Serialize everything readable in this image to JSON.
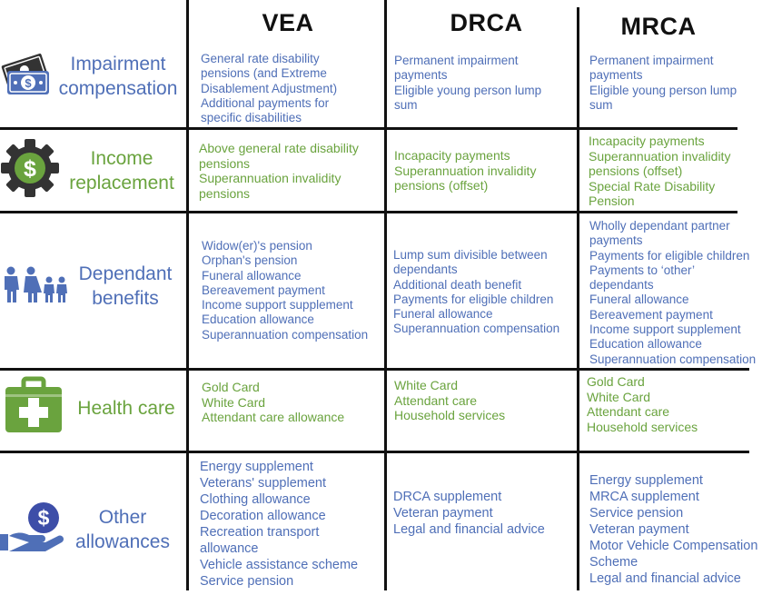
{
  "headers": {
    "vea": "VEA",
    "drca": "DRCA",
    "mrca": "MRCA"
  },
  "colors": {
    "blue": "#4f6fb7",
    "green": "#6aa33e",
    "grid": "#111111",
    "icon_dark": "#333333"
  },
  "rows": {
    "impairment": {
      "category": [
        "Impairment",
        "compensation"
      ],
      "icon": "money-icon",
      "vea": [
        "General rate disability",
        "pensions (and Extreme",
        "Disablement Adjustment)",
        "Additional payments for",
        "specific disabilities"
      ],
      "drca": [
        "Permanent impairment",
        "payments",
        "Eligible young person lump",
        "sum"
      ],
      "mrca": [
        "Permanent impairment",
        "payments",
        "Eligible young person lump",
        "sum"
      ]
    },
    "income": {
      "category": [
        "Income",
        "replacement"
      ],
      "icon": "gear-dollar-icon",
      "vea": [
        "Above general rate disability",
        "pensions",
        "Superannuation invalidity",
        "pensions"
      ],
      "drca": [
        "Incapacity payments",
        "Superannuation invalidity",
        "pensions (offset)"
      ],
      "mrca": [
        "Incapacity payments",
        "Superannuation invalidity",
        "pensions (offset)",
        "Special Rate Disability",
        "Pension"
      ]
    },
    "dependant": {
      "category": [
        "Dependant",
        "benefits"
      ],
      "icon": "family-icon",
      "vea": [
        "Widow(er)'s pension",
        "Orphan's pension",
        "Funeral allowance",
        "Bereavement payment",
        "Income support supplement",
        "Education allowance",
        "Superannuation compensation"
      ],
      "drca": [
        "Lump sum divisible between",
        "dependants",
        "Additional death benefit",
        "Payments for eligible children",
        "Funeral allowance",
        "Superannuation compensation"
      ],
      "mrca": [
        "Wholly dependant partner",
        "payments",
        "Payments for eligible children",
        "Payments to ‘other’",
        "dependants",
        "Funeral allowance",
        "Bereavement payment",
        "Income support supplement",
        "Education allowance",
        "Superannuation compensation"
      ]
    },
    "health": {
      "category": [
        "Health care"
      ],
      "icon": "medical-kit-icon",
      "vea": [
        "Gold Card",
        "White Card",
        "Attendant care allowance"
      ],
      "drca": [
        "White Card",
        "Attendant care",
        "Household services"
      ],
      "mrca": [
        "Gold Card",
        "White Card",
        "Attendant care",
        "Household services"
      ]
    },
    "other": {
      "category": [
        "Other",
        "allowances"
      ],
      "icon": "hand-coin-icon",
      "vea": [
        "Energy supplement",
        "Veterans' supplement",
        "Clothing allowance",
        "Decoration allowance",
        "Recreation transport",
        "allowance",
        "Vehicle assistance scheme",
        "Service pension"
      ],
      "drca": [
        "DRCA supplement",
        "Veteran payment",
        "Legal and financial advice"
      ],
      "mrca": [
        "Energy supplement",
        "MRCA supplement",
        "Service pension",
        "Veteran payment",
        "Motor Vehicle Compensation",
        "Scheme",
        "Legal and financial advice"
      ]
    }
  }
}
